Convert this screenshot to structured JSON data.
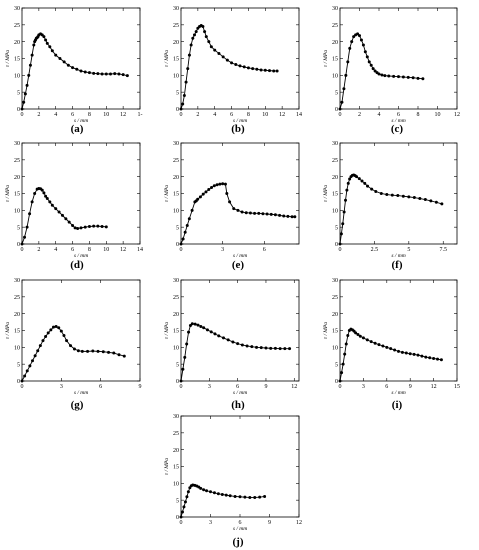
{
  "figure": {
    "axis": {
      "ylabel": "τ / MPa",
      "xlabel": "s / mm"
    },
    "panels": [
      {
        "id": "a",
        "caption": "(a)"
      },
      {
        "id": "b",
        "caption": "(b)"
      },
      {
        "id": "c",
        "caption": "(c)"
      },
      {
        "id": "d",
        "caption": "(d)"
      },
      {
        "id": "e",
        "caption": "(e)"
      },
      {
        "id": "f",
        "caption": "(f)"
      },
      {
        "id": "g",
        "caption": "(g)"
      },
      {
        "id": "h",
        "caption": "(h)"
      },
      {
        "id": "i",
        "caption": "(i)"
      },
      {
        "id": "j",
        "caption": "(j)"
      }
    ]
  },
  "chart_data": [
    {
      "panel": "a",
      "type": "line",
      "xlabel": "s / mm",
      "ylabel": "τ / MPa",
      "xlim": [
        0,
        14
      ],
      "ylim": [
        0,
        30
      ],
      "xticks": [
        0,
        2,
        4,
        6,
        8,
        10,
        12,
        14
      ],
      "xtick_labels": [
        "0",
        "2",
        "4",
        "6",
        "8",
        "10",
        "12",
        "1-"
      ],
      "yticks": [
        0,
        5,
        10,
        15,
        20,
        25,
        30
      ],
      "series": [
        {
          "x": [
            0,
            0.2,
            0.4,
            0.6,
            0.8,
            1.0,
            1.2,
            1.4,
            1.5,
            1.6,
            1.7,
            1.8,
            1.9,
            2.0,
            2.2,
            2.4,
            2.6,
            2.8,
            3.0,
            3.3,
            3.6,
            4.0,
            4.5,
            5.0,
            5.5,
            6.0,
            6.5,
            7.0,
            7.5,
            8.0,
            8.5,
            9.0,
            9.5,
            10.0,
            10.5,
            11.0,
            11.5,
            12.0,
            12.5
          ],
          "y": [
            0,
            2,
            4.5,
            7,
            10,
            13,
            16,
            19,
            20,
            20.5,
            21,
            21.2,
            21.5,
            22,
            22.3,
            22,
            21.5,
            20.5,
            19.5,
            18.5,
            17.3,
            16,
            15,
            14,
            13,
            12.3,
            11.8,
            11.3,
            11,
            10.8,
            10.6,
            10.5,
            10.4,
            10.4,
            10.4,
            10.5,
            10.4,
            10.2,
            9.9
          ]
        }
      ]
    },
    {
      "panel": "b",
      "type": "line",
      "xlabel": "s / mm",
      "ylabel": "τ / MPa",
      "xlim": [
        0,
        14
      ],
      "ylim": [
        0,
        30
      ],
      "xticks": [
        0,
        2,
        4,
        6,
        8,
        10,
        12,
        14
      ],
      "xtick_labels": [
        "0",
        "2",
        "4",
        "6",
        "8",
        "10",
        "12",
        "14"
      ],
      "yticks": [
        0,
        5,
        10,
        15,
        20,
        25,
        30
      ],
      "series": [
        {
          "x": [
            0,
            0.2,
            0.4,
            0.6,
            0.8,
            1.0,
            1.2,
            1.4,
            1.6,
            1.8,
            2.0,
            2.2,
            2.4,
            2.6,
            2.8,
            3.0,
            3.3,
            3.6,
            4.0,
            4.5,
            5.0,
            5.5,
            6.0,
            6.5,
            7.0,
            7.5,
            8.0,
            8.5,
            9.0,
            9.5,
            10.0,
            10.5,
            11.0,
            11.4
          ],
          "y": [
            0,
            1.5,
            4,
            8,
            12,
            16,
            19,
            21,
            22,
            23,
            24,
            24.5,
            24.8,
            24.5,
            23,
            21.5,
            20,
            18.5,
            17.5,
            16.5,
            15.5,
            14.5,
            13.7,
            13.2,
            12.8,
            12.5,
            12.2,
            12,
            11.8,
            11.6,
            11.5,
            11.4,
            11.3,
            11.3
          ]
        }
      ]
    },
    {
      "panel": "c",
      "type": "line",
      "xlabel": "s / mm",
      "ylabel": "τ / MPa",
      "xlim": [
        0,
        12
      ],
      "ylim": [
        0,
        30
      ],
      "xticks": [
        0,
        2,
        4,
        6,
        8,
        10,
        12
      ],
      "xtick_labels": [
        "0",
        "2",
        "4",
        "6",
        "8",
        "10",
        "12"
      ],
      "yticks": [
        0,
        5,
        10,
        15,
        20,
        25,
        30
      ],
      "series": [
        {
          "x": [
            0,
            0.2,
            0.4,
            0.6,
            0.8,
            1.0,
            1.2,
            1.4,
            1.6,
            1.8,
            2.0,
            2.2,
            2.4,
            2.6,
            2.8,
            3.0,
            3.2,
            3.4,
            3.6,
            3.8,
            4.0,
            4.3,
            4.6,
            5.0,
            5.5,
            6.0,
            6.5,
            7.0,
            7.5,
            8.0,
            8.5
          ],
          "y": [
            0,
            2,
            6,
            10,
            14,
            18,
            20,
            21.5,
            22,
            22.3,
            21.8,
            20.5,
            19,
            17,
            15.5,
            14,
            13,
            12,
            11.3,
            10.8,
            10.4,
            10.1,
            9.9,
            9.8,
            9.7,
            9.6,
            9.5,
            9.4,
            9.3,
            9.1,
            9.0
          ]
        }
      ]
    },
    {
      "panel": "d",
      "type": "line",
      "xlabel": "s / mm",
      "ylabel": "τ / MPa",
      "xlim": [
        0,
        14
      ],
      "ylim": [
        0,
        30
      ],
      "xticks": [
        0,
        2,
        4,
        6,
        8,
        10,
        12,
        14
      ],
      "xtick_labels": [
        "0",
        "2",
        "4",
        "6",
        "8",
        "10",
        "12",
        "14"
      ],
      "yticks": [
        0,
        5,
        10,
        15,
        20,
        25,
        30
      ],
      "series": [
        {
          "x": [
            0,
            0.3,
            0.6,
            0.9,
            1.2,
            1.5,
            1.8,
            2.0,
            2.2,
            2.4,
            2.6,
            2.8,
            3.0,
            3.3,
            3.6,
            4.0,
            4.4,
            4.8,
            5.2,
            5.6,
            6.0,
            6.3,
            6.6,
            7.0,
            7.5,
            8.0,
            8.5,
            9.0,
            9.5,
            10.0
          ],
          "y": [
            0,
            2,
            5,
            9,
            12.5,
            15,
            16.3,
            16.5,
            16.4,
            16,
            15.2,
            14.2,
            13.5,
            12.5,
            11.5,
            10.5,
            9.5,
            8.5,
            7.5,
            6.5,
            5.5,
            4.8,
            4.6,
            4.8,
            5.0,
            5.2,
            5.3,
            5.3,
            5.2,
            5.1
          ]
        }
      ]
    },
    {
      "panel": "e",
      "type": "line",
      "xlabel": "s / mm",
      "ylabel": "τ / MPa",
      "xlim": [
        0,
        8.5
      ],
      "ylim": [
        0,
        30
      ],
      "xticks": [
        0,
        3,
        6
      ],
      "xtick_labels": [
        "0",
        "3",
        "6"
      ],
      "yticks": [
        0,
        5,
        10,
        15,
        20,
        25,
        30
      ],
      "series": [
        {
          "x": [
            0,
            0.15,
            0.3,
            0.45,
            0.6,
            0.8,
            1.0,
            1.1,
            1.2,
            1.4,
            1.6,
            1.8,
            2.0,
            2.2,
            2.4,
            2.6,
            2.8,
            3.0,
            3.2,
            3.3,
            3.5,
            3.8,
            4.1,
            4.4,
            4.7,
            5.0,
            5.3,
            5.6,
            5.9,
            6.2,
            6.5,
            6.8,
            7.1,
            7.4,
            7.7,
            8.0,
            8.2
          ],
          "y": [
            0,
            1.5,
            3.5,
            5.5,
            7.5,
            10,
            12.5,
            12.8,
            13.3,
            14,
            14.8,
            15.5,
            16.2,
            16.8,
            17.3,
            17.6,
            17.8,
            17.9,
            17.8,
            15,
            12.5,
            10.5,
            10,
            9.5,
            9.3,
            9.2,
            9.1,
            9.1,
            9.0,
            8.9,
            8.8,
            8.7,
            8.5,
            8.3,
            8.2,
            8.1,
            8.1
          ]
        }
      ]
    },
    {
      "panel": "f",
      "type": "line",
      "xlabel": "s / mm",
      "ylabel": "τ / MPa",
      "xlim": [
        0,
        8.5
      ],
      "ylim": [
        0,
        30
      ],
      "xticks": [
        0,
        2.5,
        5,
        7.5
      ],
      "xtick_labels": [
        "0",
        "2.5",
        "5",
        "7.5"
      ],
      "yticks": [
        0,
        5,
        10,
        15,
        20,
        25,
        30
      ],
      "series": [
        {
          "x": [
            0,
            0.1,
            0.2,
            0.3,
            0.4,
            0.5,
            0.6,
            0.7,
            0.8,
            0.9,
            1.0,
            1.1,
            1.2,
            1.4,
            1.6,
            1.8,
            2.0,
            2.3,
            2.6,
            3.0,
            3.4,
            3.8,
            4.2,
            4.6,
            5.0,
            5.4,
            5.8,
            6.2,
            6.6,
            7.0,
            7.4
          ],
          "y": [
            0,
            3,
            6,
            9.5,
            13,
            16,
            18,
            19.3,
            20,
            20.4,
            20.5,
            20.3,
            20,
            19.4,
            18.7,
            18,
            17.2,
            16.3,
            15.6,
            15,
            14.7,
            14.5,
            14.4,
            14.2,
            14,
            13.8,
            13.5,
            13.2,
            12.8,
            12.4,
            11.9
          ]
        }
      ]
    },
    {
      "panel": "g",
      "type": "line",
      "xlabel": "s / mm",
      "ylabel": "τ / MPa",
      "xlim": [
        0,
        9
      ],
      "ylim": [
        0,
        30
      ],
      "xticks": [
        0,
        3,
        6,
        9
      ],
      "xtick_labels": [
        "0",
        "3",
        "6",
        "9"
      ],
      "yticks": [
        0,
        5,
        10,
        15,
        20,
        25,
        30
      ],
      "series": [
        {
          "x": [
            0,
            0.2,
            0.4,
            0.6,
            0.8,
            1.0,
            1.2,
            1.4,
            1.6,
            1.8,
            2.0,
            2.2,
            2.4,
            2.6,
            2.8,
            3.0,
            3.2,
            3.4,
            3.7,
            4.0,
            4.3,
            4.6,
            5.0,
            5.4,
            5.8,
            6.2,
            6.6,
            7.0,
            7.4,
            7.8
          ],
          "y": [
            0,
            1.5,
            3,
            4.5,
            6,
            7.5,
            9,
            10.5,
            12,
            13.2,
            14.3,
            15.2,
            16,
            16.2,
            15.8,
            14.8,
            13.5,
            12,
            10.5,
            9.5,
            9,
            8.8,
            8.8,
            8.9,
            8.8,
            8.7,
            8.5,
            8.3,
            7.8,
            7.4
          ]
        }
      ]
    },
    {
      "panel": "h",
      "type": "line",
      "xlabel": "s / mm",
      "ylabel": "τ / MPa",
      "xlim": [
        0,
        12.5
      ],
      "ylim": [
        0,
        30
      ],
      "xticks": [
        0,
        3,
        6,
        9,
        12
      ],
      "xtick_labels": [
        "0",
        "3",
        "6",
        "9",
        "12"
      ],
      "yticks": [
        0,
        5,
        10,
        15,
        20,
        25,
        30
      ],
      "series": [
        {
          "x": [
            0,
            0.2,
            0.4,
            0.6,
            0.8,
            1.0,
            1.2,
            1.5,
            1.8,
            2.1,
            2.4,
            2.8,
            3.2,
            3.6,
            4.0,
            4.5,
            5.0,
            5.5,
            6.0,
            6.5,
            7.0,
            7.5,
            8.0,
            8.5,
            9.0,
            9.5,
            10.0,
            10.5,
            11.0,
            11.5
          ],
          "y": [
            0,
            3.5,
            7,
            11,
            14.5,
            16.5,
            17,
            16.9,
            16.6,
            16.2,
            15.8,
            15.2,
            14.6,
            14,
            13.4,
            12.8,
            12.2,
            11.6,
            11.1,
            10.7,
            10.4,
            10.2,
            10.0,
            9.9,
            9.8,
            9.7,
            9.7,
            9.6,
            9.6,
            9.6
          ]
        }
      ]
    },
    {
      "panel": "i",
      "type": "line",
      "xlabel": "s / mm",
      "ylabel": "τ / MPa",
      "xlim": [
        0,
        15
      ],
      "ylim": [
        0,
        30
      ],
      "xticks": [
        0,
        3,
        6,
        9,
        12,
        15
      ],
      "xtick_labels": [
        "0",
        "3",
        "6",
        "9",
        "12",
        "15"
      ],
      "yticks": [
        0,
        5,
        10,
        15,
        20,
        25,
        30
      ],
      "series": [
        {
          "x": [
            0,
            0.2,
            0.4,
            0.6,
            0.8,
            1.0,
            1.2,
            1.4,
            1.6,
            1.8,
            2.0,
            2.3,
            2.6,
            3.0,
            3.5,
            4.0,
            4.5,
            5.0,
            5.5,
            6.0,
            6.5,
            7.0,
            7.5,
            8.0,
            8.5,
            9.0,
            9.5,
            10.0,
            10.5,
            11.0,
            11.5,
            12.0,
            12.5,
            13.0
          ],
          "y": [
            0,
            2.5,
            5,
            8,
            11,
            13.5,
            15,
            15.4,
            15.2,
            14.8,
            14.3,
            13.8,
            13.3,
            12.8,
            12.2,
            11.7,
            11.2,
            10.8,
            10.4,
            10,
            9.6,
            9.2,
            8.8,
            8.5,
            8.3,
            8.1,
            7.9,
            7.7,
            7.4,
            7.1,
            6.9,
            6.7,
            6.5,
            6.3
          ]
        }
      ]
    },
    {
      "panel": "j",
      "type": "line",
      "xlabel": "s / mm",
      "ylabel": "τ / MPa",
      "xlim": [
        0,
        12
      ],
      "ylim": [
        0,
        30
      ],
      "xticks": [
        0,
        3,
        6,
        9,
        12
      ],
      "xtick_labels": [
        "0",
        "3",
        "6",
        "9",
        "12"
      ],
      "yticks": [
        0,
        5,
        10,
        15,
        20,
        25,
        30
      ],
      "series": [
        {
          "x": [
            0,
            0.15,
            0.3,
            0.45,
            0.6,
            0.75,
            0.9,
            1.05,
            1.2,
            1.4,
            1.6,
            1.8,
            2.0,
            2.3,
            2.6,
            3.0,
            3.4,
            3.8,
            4.2,
            4.6,
            5.0,
            5.5,
            6.0,
            6.5,
            7.0,
            7.5,
            8.0,
            8.5
          ],
          "y": [
            0,
            1.5,
            3,
            4.5,
            6,
            7.5,
            8.7,
            9.3,
            9.5,
            9.4,
            9.2,
            8.9,
            8.5,
            8.1,
            7.8,
            7.5,
            7.2,
            6.9,
            6.7,
            6.5,
            6.3,
            6.1,
            6.0,
            5.9,
            5.8,
            5.8,
            5.9,
            6.1
          ]
        }
      ]
    }
  ]
}
